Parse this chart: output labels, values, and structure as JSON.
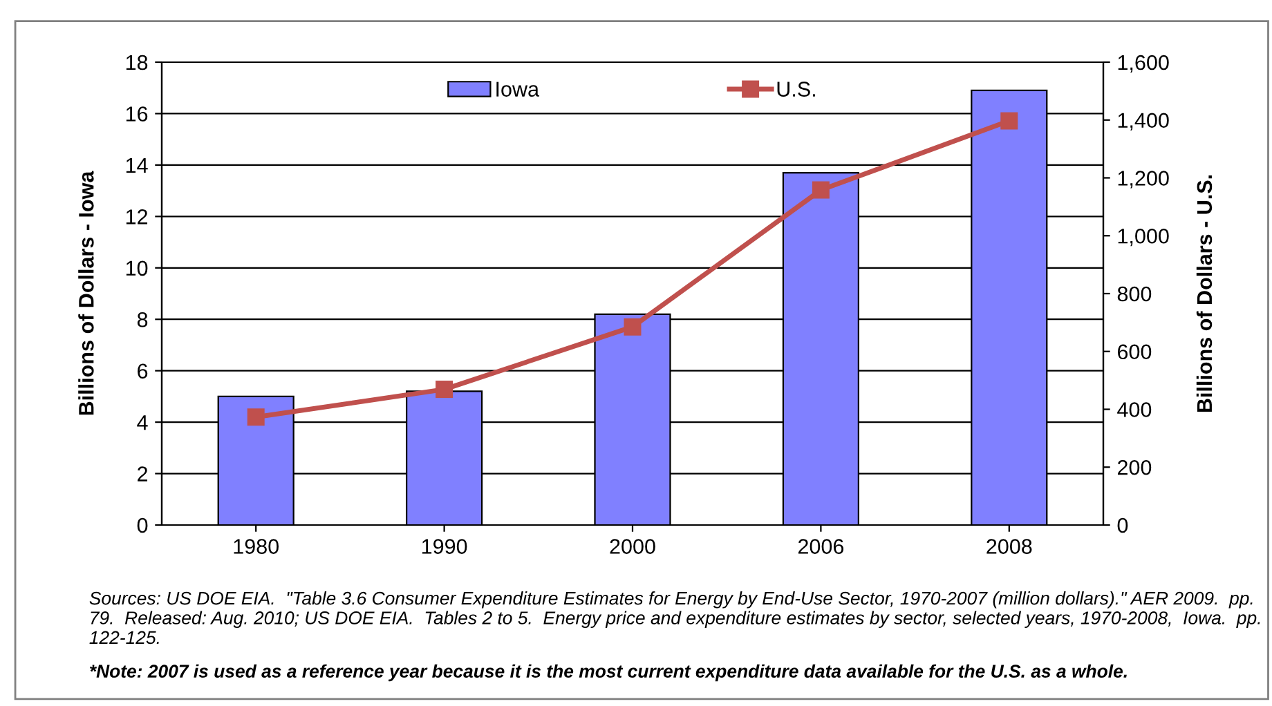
{
  "chart_data": {
    "type": "bar",
    "categories": [
      "1980",
      "1990",
      "2000",
      "2006",
      "2008"
    ],
    "series": [
      {
        "name": "Iowa",
        "color": "#8080ff",
        "values": [
          5.0,
          5.2,
          8.2,
          13.7,
          16.9
        ]
      },
      {
        "name": "U.S.",
        "type": "line",
        "axis": "y2",
        "color": "#c0504d",
        "marker": "square",
        "values": [
          373,
          469,
          685,
          1158,
          1397
        ]
      }
    ],
    "ylabel": "Billions of Dollars - Iowa",
    "y2label": "Billions of Dollars - U.S.",
    "ylim": [
      0,
      18
    ],
    "yticks": [
      0,
      2,
      4,
      6,
      8,
      10,
      12,
      14,
      16,
      18
    ],
    "y2lim": [
      0,
      1600
    ],
    "y2ticks": [
      0,
      {
        "value": 200,
        "label": "200"
      },
      {
        "value": 400,
        "label": "400"
      },
      {
        "value": 600,
        "label": "600"
      },
      {
        "value": 800,
        "label": "800"
      },
      {
        "value": 1000,
        "label": "1,000"
      },
      {
        "value": 1200,
        "label": "1,200"
      },
      {
        "value": 1400,
        "label": "1,400"
      },
      {
        "value": 1600,
        "label": "1,600"
      }
    ],
    "grid": "y",
    "legend": "top",
    "annotations": [
      "Sources: US DOE EIA.  \"Table 3.6 Consumer Expenditure Estimates for Energy by End-Use Sector, 1970-2007 (million dollars).\" AER 2009.  pp. 79.  Released: Aug. 2010; US DOE EIA.  Tables 2 to 5.  Energy price and expenditure estimates by sector, selected years, 1970-2008,  Iowa.  pp. 122-125.",
      "*Note: 2007 is used as a reference year because it is the most current expenditure data available for the U.S. as a whole."
    ]
  }
}
